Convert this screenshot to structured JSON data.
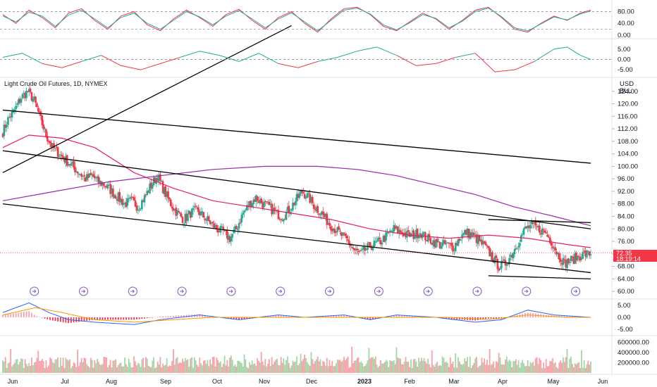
{
  "chart_data": {
    "type": "candlestick",
    "title": "Light Crude Oil Futures, 1D, NYMEX",
    "units": [
      "USD",
      "BLL"
    ],
    "price_axis": {
      "ticks": [
        "124.00",
        "120.00",
        "116.00",
        "112.00",
        "108.00",
        "104.00",
        "100.00",
        "96.00",
        "92.00",
        "88.00",
        "84.00",
        "80.00",
        "76.00",
        "72.00",
        "68.00",
        "64.00",
        "60.00"
      ],
      "ylim": [
        58,
        128
      ]
    },
    "last_price": {
      "value": "72.35",
      "countdown": "18:19:14",
      "color": "#f23645"
    },
    "x_axis": {
      "labels": [
        {
          "text": "Jun",
          "bold": false
        },
        {
          "text": "Jul",
          "bold": false
        },
        {
          "text": "Aug",
          "bold": false
        },
        {
          "text": "Sep",
          "bold": false
        },
        {
          "text": "Oct",
          "bold": false
        },
        {
          "text": "Nov",
          "bold": false
        },
        {
          "text": "Dec",
          "bold": false
        },
        {
          "text": "2023",
          "bold": true
        },
        {
          "text": "Feb",
          "bold": false
        },
        {
          "text": "Mar",
          "bold": false
        },
        {
          "text": "Apr",
          "bold": false
        },
        {
          "text": "May",
          "bold": false
        },
        {
          "text": "Jun",
          "bold": false
        }
      ]
    },
    "price_keypoints": [
      [
        0,
        111
      ],
      [
        4,
        115
      ],
      [
        9,
        118
      ],
      [
        14,
        122
      ],
      [
        19,
        124
      ],
      [
        24,
        121
      ],
      [
        28,
        116
      ],
      [
        33,
        110
      ],
      [
        38,
        106
      ],
      [
        43,
        104
      ],
      [
        48,
        102
      ],
      [
        53,
        100
      ],
      [
        58,
        98
      ],
      [
        63,
        96
      ],
      [
        68,
        97
      ],
      [
        73,
        95
      ],
      [
        78,
        94
      ],
      [
        83,
        92
      ],
      [
        88,
        90
      ],
      [
        93,
        88
      ],
      [
        98,
        89
      ],
      [
        103,
        87
      ],
      [
        108,
        90
      ],
      [
        113,
        94
      ],
      [
        118,
        97
      ],
      [
        123,
        92
      ],
      [
        128,
        88
      ],
      [
        133,
        85
      ],
      [
        138,
        83
      ],
      [
        143,
        85
      ],
      [
        148,
        86
      ],
      [
        153,
        84
      ],
      [
        158,
        82
      ],
      [
        163,
        80
      ],
      [
        168,
        79
      ],
      [
        173,
        77
      ],
      [
        178,
        80
      ],
      [
        183,
        85
      ],
      [
        188,
        88
      ],
      [
        193,
        90
      ],
      [
        198,
        88
      ],
      [
        203,
        87
      ],
      [
        208,
        85
      ],
      [
        213,
        84
      ],
      [
        218,
        86
      ],
      [
        223,
        89
      ],
      [
        228,
        92
      ],
      [
        233,
        90
      ],
      [
        238,
        87
      ],
      [
        243,
        85
      ],
      [
        248,
        82
      ],
      [
        253,
        80
      ],
      [
        258,
        78
      ],
      [
        263,
        76
      ],
      [
        268,
        73
      ],
      [
        273,
        72
      ],
      [
        278,
        74
      ],
      [
        283,
        75
      ],
      [
        288,
        76
      ],
      [
        293,
        78
      ],
      [
        298,
        80
      ],
      [
        303,
        79
      ],
      [
        308,
        78
      ],
      [
        313,
        78
      ],
      [
        318,
        79
      ],
      [
        323,
        77
      ],
      [
        328,
        76
      ],
      [
        333,
        75
      ],
      [
        338,
        75
      ],
      [
        343,
        74
      ],
      [
        348,
        77
      ],
      [
        353,
        79
      ],
      [
        358,
        78
      ],
      [
        363,
        76
      ],
      [
        368,
        74
      ],
      [
        373,
        71
      ],
      [
        378,
        68
      ],
      [
        383,
        69
      ],
      [
        388,
        72
      ],
      [
        393,
        76
      ],
      [
        398,
        80
      ],
      [
        403,
        81
      ],
      [
        408,
        80
      ],
      [
        413,
        79
      ],
      [
        418,
        76
      ],
      [
        423,
        72
      ],
      [
        428,
        69
      ],
      [
        433,
        70
      ],
      [
        438,
        71
      ],
      [
        443,
        72
      ],
      [
        448,
        72
      ]
    ],
    "moving_averages": [
      {
        "color": "#e91e63",
        "points": [
          [
            0,
            106
          ],
          [
            20,
            110
          ],
          [
            45,
            109
          ],
          [
            70,
            106
          ],
          [
            100,
            98
          ],
          [
            130,
            93
          ],
          [
            160,
            89
          ],
          [
            190,
            87
          ],
          [
            220,
            85
          ],
          [
            250,
            83
          ],
          [
            280,
            80
          ],
          [
            310,
            78
          ],
          [
            340,
            77
          ],
          [
            370,
            78
          ],
          [
            400,
            77
          ],
          [
            430,
            75
          ],
          [
            448,
            74
          ]
        ]
      },
      {
        "color": "#9c27b0",
        "points": [
          [
            0,
            89
          ],
          [
            40,
            92
          ],
          [
            80,
            95
          ],
          [
            120,
            97
          ],
          [
            160,
            99
          ],
          [
            200,
            100
          ],
          [
            240,
            100
          ],
          [
            270,
            99
          ],
          [
            300,
            97
          ],
          [
            330,
            94
          ],
          [
            360,
            91
          ],
          [
            390,
            87
          ],
          [
            420,
            84
          ],
          [
            448,
            81
          ]
        ]
      }
    ],
    "trendlines": [
      {
        "points": [
          [
            0,
            118
          ],
          [
            448,
            101
          ]
        ]
      },
      {
        "points": [
          [
            0,
            105
          ],
          [
            448,
            80
          ]
        ]
      },
      {
        "points": [
          [
            0,
            88
          ],
          [
            448,
            66
          ]
        ]
      },
      {
        "points": [
          [
            0,
            98
          ],
          [
            220,
            145
          ]
        ]
      },
      {
        "points": [
          [
            370,
            83
          ],
          [
            448,
            82
          ]
        ]
      },
      {
        "points": [
          [
            370,
            65
          ],
          [
            448,
            64
          ]
        ]
      }
    ],
    "stochastic": {
      "ticks": [
        "80.00",
        "40.00",
        "0.00"
      ],
      "ylim": [
        -5,
        110
      ],
      "levels": [
        80,
        20
      ],
      "k": {
        "color": "#f23645",
        "points": [
          [
            0,
            70
          ],
          [
            10,
            40
          ],
          [
            20,
            85
          ],
          [
            30,
            60
          ],
          [
            40,
            25
          ],
          [
            50,
            75
          ],
          [
            60,
            90
          ],
          [
            70,
            50
          ],
          [
            80,
            20
          ],
          [
            90,
            65
          ],
          [
            100,
            80
          ],
          [
            110,
            35
          ],
          [
            120,
            15
          ],
          [
            130,
            55
          ],
          [
            140,
            85
          ],
          [
            150,
            60
          ],
          [
            160,
            30
          ],
          [
            170,
            70
          ],
          [
            180,
            88
          ],
          [
            190,
            50
          ],
          [
            200,
            20
          ],
          [
            210,
            60
          ],
          [
            220,
            80
          ],
          [
            230,
            40
          ],
          [
            240,
            10
          ],
          [
            250,
            55
          ],
          [
            260,
            90
          ],
          [
            270,
            95
          ],
          [
            280,
            70
          ],
          [
            290,
            30
          ],
          [
            300,
            15
          ],
          [
            310,
            45
          ],
          [
            320,
            75
          ],
          [
            330,
            55
          ],
          [
            340,
            20
          ],
          [
            350,
            50
          ],
          [
            360,
            85
          ],
          [
            370,
            95
          ],
          [
            380,
            60
          ],
          [
            390,
            20
          ],
          [
            400,
            10
          ],
          [
            410,
            40
          ],
          [
            420,
            65
          ],
          [
            430,
            50
          ],
          [
            440,
            75
          ],
          [
            448,
            85
          ]
        ]
      },
      "d": {
        "color": "#22ab94",
        "points": [
          [
            0,
            65
          ],
          [
            10,
            45
          ],
          [
            20,
            78
          ],
          [
            30,
            65
          ],
          [
            40,
            30
          ],
          [
            50,
            68
          ],
          [
            60,
            85
          ],
          [
            70,
            55
          ],
          [
            80,
            25
          ],
          [
            90,
            60
          ],
          [
            100,
            75
          ],
          [
            110,
            40
          ],
          [
            120,
            20
          ],
          [
            130,
            50
          ],
          [
            140,
            80
          ],
          [
            150,
            62
          ],
          [
            160,
            35
          ],
          [
            170,
            65
          ],
          [
            180,
            84
          ],
          [
            190,
            55
          ],
          [
            200,
            25
          ],
          [
            210,
            55
          ],
          [
            220,
            76
          ],
          [
            230,
            45
          ],
          [
            240,
            15
          ],
          [
            250,
            50
          ],
          [
            260,
            85
          ],
          [
            270,
            92
          ],
          [
            280,
            72
          ],
          [
            290,
            35
          ],
          [
            300,
            18
          ],
          [
            310,
            42
          ],
          [
            320,
            70
          ],
          [
            330,
            57
          ],
          [
            340,
            25
          ],
          [
            350,
            47
          ],
          [
            360,
            80
          ],
          [
            370,
            92
          ],
          [
            380,
            63
          ],
          [
            390,
            25
          ],
          [
            400,
            14
          ],
          [
            410,
            38
          ],
          [
            420,
            62
          ],
          [
            430,
            52
          ],
          [
            440,
            72
          ],
          [
            448,
            82
          ]
        ]
      }
    },
    "oscillator": {
      "ticks": [
        "5.00",
        "0.00",
        "-5.00"
      ],
      "ylim": [
        -8,
        9
      ],
      "points": [
        [
          0,
          1
        ],
        [
          15,
          3
        ],
        [
          30,
          -2
        ],
        [
          45,
          -4
        ],
        [
          60,
          -1
        ],
        [
          75,
          2
        ],
        [
          90,
          -3
        ],
        [
          105,
          -5
        ],
        [
          120,
          -2
        ],
        [
          135,
          1
        ],
        [
          150,
          4
        ],
        [
          165,
          2
        ],
        [
          180,
          -1
        ],
        [
          195,
          3
        ],
        [
          210,
          -2
        ],
        [
          225,
          -4
        ],
        [
          240,
          -1
        ],
        [
          255,
          1
        ],
        [
          270,
          4
        ],
        [
          285,
          6
        ],
        [
          300,
          2
        ],
        [
          315,
          -3
        ],
        [
          330,
          -2
        ],
        [
          345,
          1
        ],
        [
          360,
          3
        ],
        [
          375,
          -6
        ],
        [
          390,
          -5
        ],
        [
          405,
          -1
        ],
        [
          420,
          5
        ],
        [
          430,
          6
        ],
        [
          440,
          2
        ],
        [
          448,
          0
        ]
      ]
    },
    "macd": {
      "ticks": [
        "5.00",
        "0.00",
        "-5.00"
      ],
      "ylim": [
        -7,
        7
      ],
      "hist_color_pos": "#f7a1a8",
      "hist_color_neg": "#f23645",
      "macd_line": {
        "color": "#2962ff",
        "points": [
          [
            0,
            2
          ],
          [
            20,
            6
          ],
          [
            35,
            2
          ],
          [
            50,
            -1
          ],
          [
            70,
            -2
          ],
          [
            100,
            -3
          ],
          [
            120,
            -1
          ],
          [
            150,
            1
          ],
          [
            180,
            -1
          ],
          [
            210,
            1
          ],
          [
            230,
            0
          ],
          [
            260,
            1
          ],
          [
            280,
            -1
          ],
          [
            300,
            1
          ],
          [
            330,
            0
          ],
          [
            360,
            -2
          ],
          [
            380,
            -1
          ],
          [
            400,
            3
          ],
          [
            420,
            1
          ],
          [
            448,
            0
          ]
        ]
      },
      "signal_line": {
        "color": "#ff9800",
        "points": [
          [
            0,
            1
          ],
          [
            25,
            4
          ],
          [
            45,
            2
          ],
          [
            70,
            -1
          ],
          [
            100,
            -2
          ],
          [
            130,
            -1
          ],
          [
            160,
            0
          ],
          [
            190,
            0
          ],
          [
            220,
            0
          ],
          [
            250,
            0
          ],
          [
            280,
            0
          ],
          [
            310,
            0
          ],
          [
            340,
            0
          ],
          [
            370,
            -1
          ],
          [
            400,
            1
          ],
          [
            430,
            0
          ],
          [
            448,
            0
          ]
        ]
      }
    },
    "volume": {
      "ticks": [
        "600000.00",
        "400000.00",
        "200000.00"
      ],
      "ylim": [
        0,
        700000
      ]
    }
  }
}
